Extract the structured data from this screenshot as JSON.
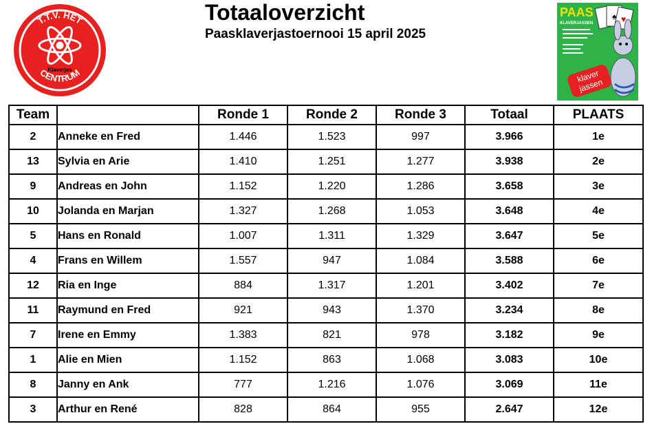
{
  "header": {
    "title": "Totaaloverzicht",
    "subtitle": "Paasklaverjastoernooi 15 april 2025"
  },
  "logo": {
    "top_text": "T.T.V. HET",
    "small_text": "Klaverjas",
    "bottom_text": "CENTRUM",
    "color": "#e8201f"
  },
  "poster": {
    "title": "PAAS",
    "subtitle": "KLAVERJASSEN",
    "badge_line1": "klaver",
    "badge_line2": "jassen",
    "bg_color": "#2db34a"
  },
  "table": {
    "headers": {
      "team": "Team",
      "name": "",
      "r1": "Ronde 1",
      "r2": "Ronde 2",
      "r3": "Ronde 3",
      "totaal": "Totaal",
      "plaats": "PLAATS"
    },
    "rows": [
      {
        "team": "2",
        "name": "Anneke en Fred",
        "r1": "1.446",
        "r2": "1.523",
        "r3": "997",
        "totaal": "3.966",
        "plaats": "1e"
      },
      {
        "team": "13",
        "name": "Sylvia en Arie",
        "r1": "1.410",
        "r2": "1.251",
        "r3": "1.277",
        "totaal": "3.938",
        "plaats": "2e"
      },
      {
        "team": "9",
        "name": "Andreas en John",
        "r1": "1.152",
        "r2": "1.220",
        "r3": "1.286",
        "totaal": "3.658",
        "plaats": "3e"
      },
      {
        "team": "10",
        "name": "Jolanda en Marjan",
        "r1": "1.327",
        "r2": "1.268",
        "r3": "1.053",
        "totaal": "3.648",
        "plaats": "4e"
      },
      {
        "team": "5",
        "name": "Hans en Ronald",
        "r1": "1.007",
        "r2": "1.311",
        "r3": "1.329",
        "totaal": "3.647",
        "plaats": "5e"
      },
      {
        "team": "4",
        "name": "Frans en Willem",
        "r1": "1.557",
        "r2": "947",
        "r3": "1.084",
        "totaal": "3.588",
        "plaats": "6e"
      },
      {
        "team": "12",
        "name": "Ria en Inge",
        "r1": "884",
        "r2": "1.317",
        "r3": "1.201",
        "totaal": "3.402",
        "plaats": "7e"
      },
      {
        "team": "11",
        "name": "Raymund en Fred",
        "r1": "921",
        "r2": "943",
        "r3": "1.370",
        "totaal": "3.234",
        "plaats": "8e"
      },
      {
        "team": "7",
        "name": "Irene en Emmy",
        "r1": "1.383",
        "r2": "821",
        "r3": "978",
        "totaal": "3.182",
        "plaats": "9e"
      },
      {
        "team": "1",
        "name": "Alie en Mien",
        "r1": "1.152",
        "r2": "863",
        "r3": "1.068",
        "totaal": "3.083",
        "plaats": "10e"
      },
      {
        "team": "8",
        "name": "Janny en Ank",
        "r1": "777",
        "r2": "1.216",
        "r3": "1.076",
        "totaal": "3.069",
        "plaats": "11e"
      },
      {
        "team": "3",
        "name": "Arthur en René",
        "r1": "828",
        "r2": "864",
        "r3": "955",
        "totaal": "2.647",
        "plaats": "12e"
      }
    ]
  }
}
